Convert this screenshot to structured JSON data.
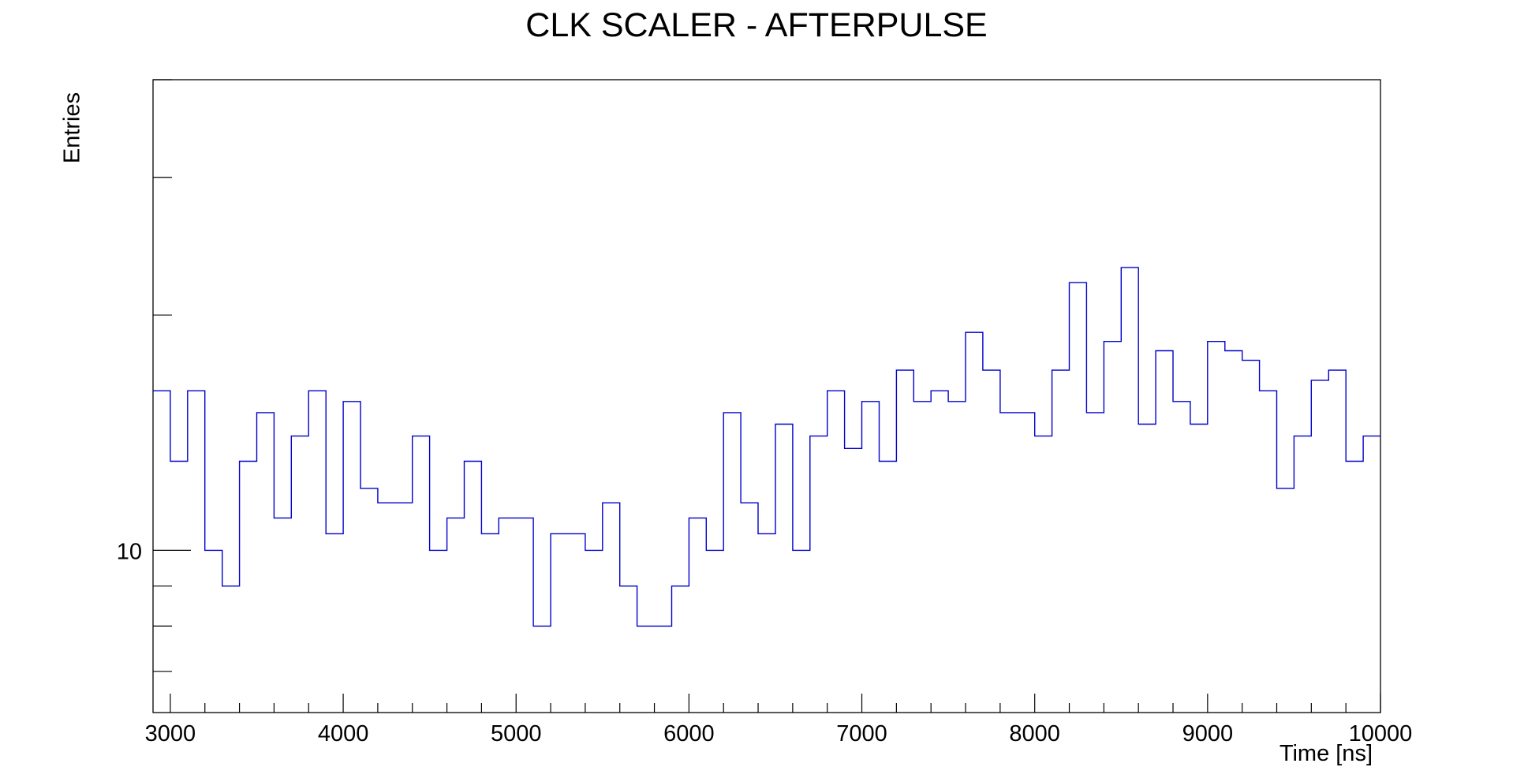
{
  "chart_data": {
    "type": "histogram",
    "title": "CLK SCALER - AFTERPULSE",
    "xlabel": "Time [ns]",
    "ylabel": "Entries",
    "xlim": [
      2900,
      10000
    ],
    "ylim": [
      6.2,
      40
    ],
    "y_scale": "log",
    "grid": false,
    "line_color": "#0000cc",
    "bin_width": 100,
    "x_tick_labels": [
      "3000",
      "4000",
      "5000",
      "6000",
      "7000",
      "8000",
      "9000",
      "10000"
    ],
    "y_tick_labels": [
      "10"
    ],
    "bins_start": [
      2900,
      3000,
      3100,
      3200,
      3300,
      3400,
      3500,
      3600,
      3700,
      3800,
      3900,
      4000,
      4100,
      4200,
      4300,
      4400,
      4500,
      4600,
      4700,
      4800,
      4900,
      5000,
      5100,
      5200,
      5300,
      5400,
      5500,
      5600,
      5700,
      5800,
      5900,
      6000,
      6100,
      6200,
      6300,
      6400,
      6500,
      6600,
      6700,
      6800,
      6900,
      7000,
      7100,
      7200,
      7300,
      7400,
      7500,
      7600,
      7700,
      7800,
      7900,
      8000,
      8100,
      8200,
      8300,
      8400,
      8500,
      8600,
      8700,
      8800,
      8900,
      9000,
      9100,
      9200,
      9300,
      9400,
      9500,
      9600,
      9700,
      9800,
      9900
    ],
    "values": [
      16,
      13,
      16,
      10,
      9,
      13,
      15,
      11,
      14,
      16,
      10.5,
      15.5,
      12,
      11.5,
      11.5,
      14,
      10,
      11,
      13,
      10.5,
      11,
      11,
      8,
      10.5,
      10.5,
      10,
      11.5,
      9,
      8,
      8,
      9,
      11,
      10,
      15,
      11.5,
      10.5,
      14.5,
      10,
      14,
      16,
      13.5,
      15.5,
      13,
      17,
      15.5,
      16,
      15.5,
      19,
      17,
      15,
      15,
      14,
      17,
      22,
      15,
      18.5,
      23,
      14.5,
      18,
      15.5,
      14.5,
      18.5,
      18,
      17.5,
      16,
      12,
      14,
      16.5,
      17,
      13,
      14
    ]
  }
}
